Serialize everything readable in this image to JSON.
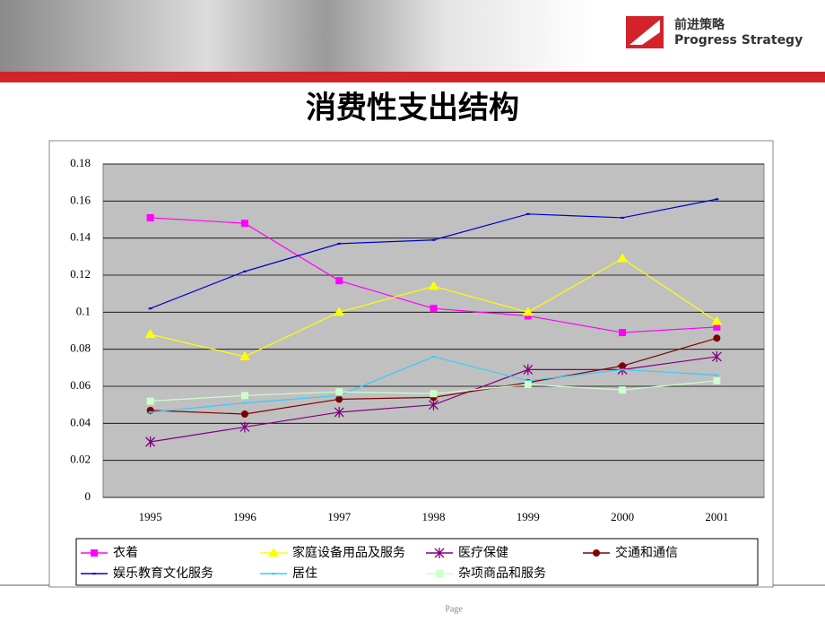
{
  "header": {
    "logo_cn": "前进策略",
    "logo_en": "Progress Strategy"
  },
  "chart_data": {
    "type": "line",
    "title": "消费性支出结构",
    "categories": [
      "1995",
      "1996",
      "1997",
      "1998",
      "1999",
      "2000",
      "2001"
    ],
    "ylim": [
      0,
      0.18
    ],
    "yticks": [
      0,
      0.02,
      0.04,
      0.06,
      0.08,
      0.1,
      0.12,
      0.14,
      0.16,
      0.18
    ],
    "grid": true,
    "series": [
      {
        "name": "衣着",
        "color": "#ff00ff",
        "marker": "square",
        "values": [
          0.151,
          0.148,
          0.117,
          0.102,
          0.098,
          0.089,
          0.092
        ]
      },
      {
        "name": "家庭设备用品及服务",
        "color": "#ffff00",
        "marker": "triangle",
        "values": [
          0.088,
          0.076,
          0.1,
          0.114,
          0.1,
          0.129,
          0.095
        ]
      },
      {
        "name": "医疗保健",
        "color": "#800080",
        "marker": "star",
        "values": [
          0.03,
          0.038,
          0.046,
          0.05,
          0.069,
          0.069,
          0.076
        ]
      },
      {
        "name": "交通和通信",
        "color": "#800000",
        "marker": "circle",
        "values": [
          0.047,
          0.045,
          0.053,
          0.054,
          0.062,
          0.071,
          0.086
        ]
      },
      {
        "name": "娱乐教育文化服务",
        "color": "#0000cc",
        "marker": "dash",
        "values": [
          0.102,
          0.122,
          0.137,
          0.139,
          0.153,
          0.151,
          0.161
        ]
      },
      {
        "name": "居住",
        "color": "#33ccff",
        "marker": "dash",
        "values": [
          0.046,
          0.051,
          0.055,
          0.076,
          0.063,
          0.069,
          0.066
        ]
      },
      {
        "name": "杂项商品和服务",
        "color": "#ccffcc",
        "marker": "square",
        "values": [
          0.052,
          0.055,
          0.057,
          0.056,
          0.061,
          0.058,
          0.063
        ]
      }
    ]
  },
  "footer": "Page"
}
